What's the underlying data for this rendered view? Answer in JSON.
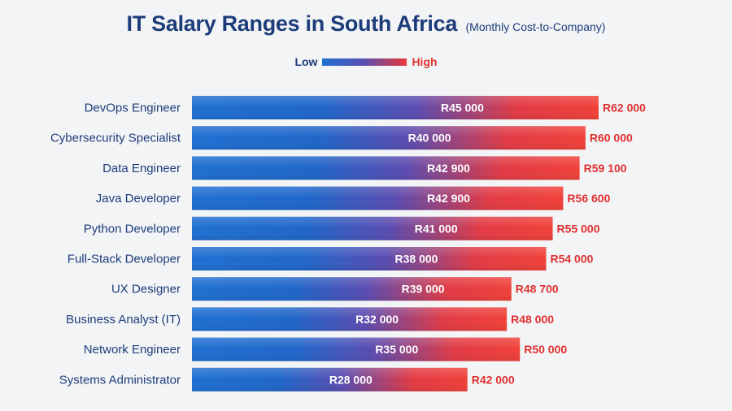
{
  "chart_data": {
    "type": "bar",
    "title": "IT Salary Ranges in South Africa",
    "subtitle": "(Monthly Cost-to-Company)",
    "legend": {
      "low_label": "Low",
      "high_label": "High",
      "placement": "top-center"
    },
    "categories": [
      "DevOps Engineer",
      "Cybersecurity Specialist",
      "Data Engineer",
      "Java Developer",
      "Python Developer",
      "Full-Stack Developer",
      "UX Designer",
      "Business Analyst (IT)",
      "Network Engineer",
      "Systems Administrator"
    ],
    "series": [
      {
        "name": "Low",
        "values": [
          45000,
          40000,
          42900,
          42900,
          41000,
          38000,
          39000,
          32000,
          35000,
          28000
        ],
        "labels": [
          "R45 000",
          "R40 000",
          "R42 900",
          "R42 900",
          "R41 000",
          "R38 000",
          "R39 000",
          "R32 000",
          "R35 000",
          "R28 000"
        ]
      },
      {
        "name": "High",
        "values": [
          62000,
          60000,
          59100,
          56600,
          55000,
          54000,
          48700,
          48000,
          50000,
          42000
        ],
        "labels": [
          "R62 000",
          "R60 000",
          "R59 100",
          "R56 600",
          "R55 000",
          "R54 000",
          "R48 700",
          "R48 000",
          "R50 000",
          "R42 000"
        ]
      }
    ],
    "xlim": [
      0,
      62000
    ],
    "colors": {
      "low": "#1e6fd1",
      "mid": "#5b4bb0",
      "high": "#ee3a3a",
      "low_text": "#1d3d7a",
      "high_text": "#e03030"
    }
  }
}
